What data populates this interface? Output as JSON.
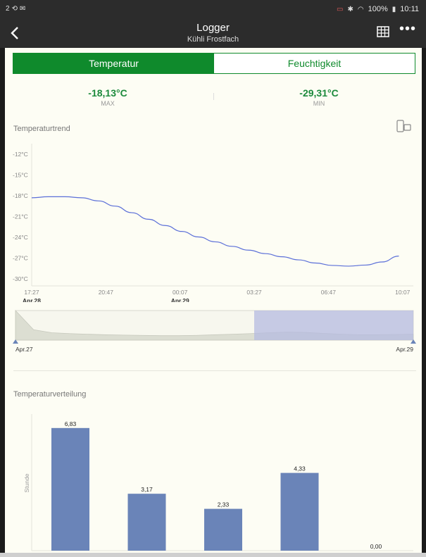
{
  "status_bar": {
    "left_text": "2",
    "battery": "100%",
    "time": "10:11"
  },
  "app_bar": {
    "title": "Logger",
    "subtitle": "Kühli Frostfach",
    "back_icon": "back-chevron-icon",
    "table_icon": "table-grid-icon",
    "more_icon": "more-dots-icon"
  },
  "tabs": [
    {
      "label": "Temperatur",
      "active": true
    },
    {
      "label": "Feuchtigkeit",
      "active": false
    }
  ],
  "stats": {
    "max": {
      "value": "-18,13°C",
      "label": "MAX"
    },
    "min": {
      "value": "-29,31°C",
      "label": "MIN"
    }
  },
  "trend": {
    "title": "Temperaturtrend",
    "rotate_icon": "phone-rotate-icon"
  },
  "colors": {
    "accent": "#0f8a2c",
    "value_green": "#1c8a3c",
    "line": "#5b6fd8",
    "bar": "#6a84b8",
    "selection": "#b5bbe0"
  },
  "chart_data": [
    {
      "type": "line",
      "title": "",
      "xlabel": "",
      "ylabel": "",
      "y_ticks": [
        "-12°C",
        "-15°C",
        "-18°C",
        "-21°C",
        "-24°C",
        "-27°C",
        "-30°C"
      ],
      "y_tick_values": [
        -12,
        -15,
        -18,
        -21,
        -24,
        -27,
        -30
      ],
      "ylim": [
        -31,
        -10.5
      ],
      "x_ticks": [
        "17:27",
        "20:47",
        "00:07",
        "03:27",
        "06:47",
        "10:07"
      ],
      "x_tick_dates": [
        "Apr.28",
        "",
        "Apr.29",
        "",
        "",
        ""
      ],
      "x_tick_hours": [
        17.45,
        20.783,
        24.117,
        27.45,
        30.783,
        34.117
      ],
      "xlim_hours": [
        17.45,
        34.6
      ],
      "series": [
        {
          "x_hours": [
            17.45,
            18.2,
            18.95,
            19.7,
            20.45,
            21.2,
            21.95,
            22.7,
            23.45,
            24.2,
            24.95,
            25.7,
            26.45,
            27.2,
            27.95,
            28.7,
            29.45,
            30.2,
            30.95,
            31.7,
            32.45,
            33.2,
            33.95
          ],
          "y": [
            -18.3,
            -18.15,
            -18.15,
            -18.3,
            -18.75,
            -19.5,
            -20.45,
            -21.4,
            -22.3,
            -23.15,
            -23.95,
            -24.65,
            -25.3,
            -25.85,
            -26.35,
            -26.8,
            -27.25,
            -27.7,
            -28.05,
            -28.15,
            -28.0,
            -27.55,
            -26.7
          ]
        }
      ]
    },
    {
      "type": "area",
      "title": "",
      "x_start_label": "Apr.27",
      "x_end_label": "Apr.29",
      "profile": [
        1.0,
        0.35,
        0.25,
        0.22,
        0.2,
        0.18,
        0.17,
        0.16,
        0.15,
        0.15,
        0.16,
        0.18,
        0.2,
        0.22,
        0.25,
        0.27,
        0.26,
        0.23,
        0.2,
        0.18,
        0.18,
        0.19,
        0.2
      ],
      "selection_start": 0.6,
      "selection_end": 1.0
    },
    {
      "type": "bar",
      "title": "Temperaturverteilung",
      "xlabel": "",
      "ylabel": "Stunde",
      "categories": [
        "",
        "",
        "",
        "",
        ""
      ],
      "values": [
        6.83,
        3.17,
        2.33,
        4.33,
        0.0
      ],
      "value_labels": [
        "6,83",
        "3,17",
        "2,33",
        "4,33",
        "0,00"
      ]
    }
  ]
}
